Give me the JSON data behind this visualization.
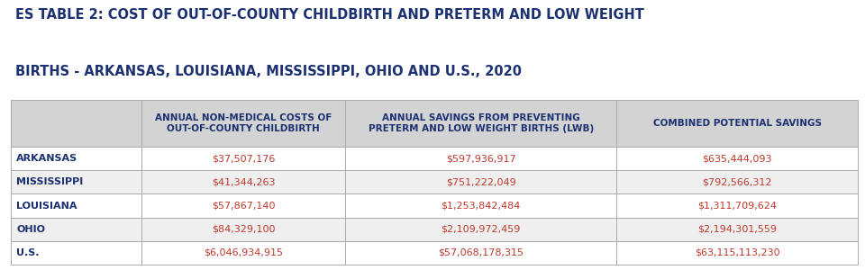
{
  "title_line1": "ES TABLE 2: COST OF OUT-OF-COUNTY CHILDBIRTH AND PRETERM AND LOW WEIGHT",
  "title_line2": "BIRTHS - ARKANSAS, LOUISIANA, MISSISSIPPI, OHIO AND U.S., 2020",
  "title_color": "#1c3172",
  "title_fontsize": 10.5,
  "col_headers": [
    "ANNUAL NON-MEDICAL COSTS OF\nOUT-OF-COUNTY CHILDBIRTH",
    "ANNUAL SAVINGS FROM PREVENTING\nPRETERM AND LOW WEIGHT BIRTHS (LWB)",
    "COMBINED POTENTIAL SAVINGS"
  ],
  "row_labels": [
    "ARKANSAS",
    "MISSISSIPPI",
    "LOUISIANA",
    "OHIO",
    "U.S."
  ],
  "col1_values": [
    "$37,507,176",
    "$41,344,263",
    "$57,867,140",
    "$84,329,100",
    "$6,046,934,915"
  ],
  "col2_values": [
    "$597,936,917",
    "$751,222,049",
    "$1,253,842,484",
    "$2,109,972,459",
    "$57,068,178,315"
  ],
  "col3_values": [
    "$635,444,093",
    "$792,566,312",
    "$1,311,709,624",
    "$2,194,301,559",
    "$63,115,113,230"
  ],
  "header_bg": "#d3d3d3",
  "row_label_color": "#1c3172",
  "value_color": "#c0392b",
  "header_text_color": "#1c3172",
  "border_color": "#aaaaaa",
  "bg_color": "#ffffff",
  "row_alt_colors": [
    "#ffffff",
    "#efefef",
    "#ffffff",
    "#efefef",
    "#ffffff"
  ],
  "cell_text_fontsize": 8.0,
  "header_fontsize": 7.5,
  "row_label_fontsize": 8.0
}
